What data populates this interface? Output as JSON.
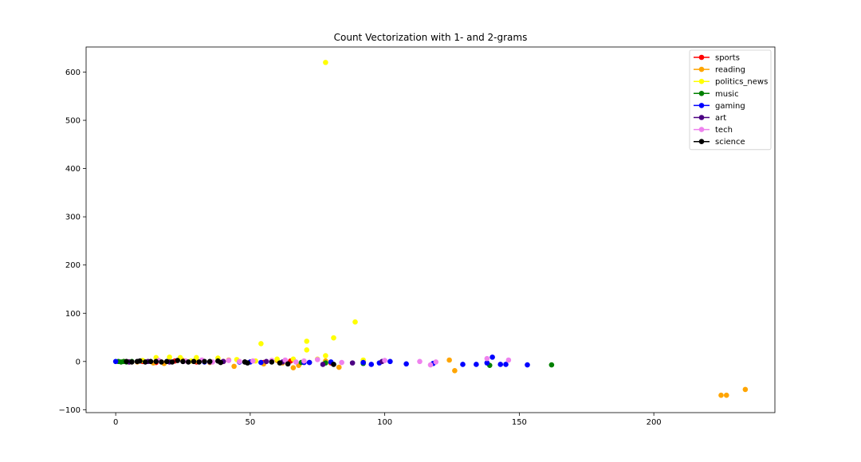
{
  "chart_data": {
    "type": "scatter",
    "title": "Count Vectorization with 1- and 2-grams",
    "xlabel": "",
    "ylabel": "",
    "xlim": [
      -11,
      245
    ],
    "ylim": [
      -106,
      652
    ],
    "xticks": [
      0,
      50,
      100,
      150,
      200
    ],
    "yticks": [
      -100,
      0,
      100,
      200,
      300,
      400,
      500,
      600
    ],
    "grid": false,
    "legend_position": "top-right",
    "series": [
      {
        "name": "sports",
        "color": "#ff0000",
        "points": [
          [
            5,
            -1
          ],
          [
            10,
            0
          ],
          [
            15,
            -2
          ],
          [
            22,
            1
          ],
          [
            30,
            -1
          ],
          [
            40,
            0
          ],
          [
            55,
            -2
          ],
          [
            65,
            1
          ],
          [
            80,
            -3
          ]
        ]
      },
      {
        "name": "reading",
        "color": "#ffa500",
        "points": [
          [
            3,
            0
          ],
          [
            8,
            -1
          ],
          [
            14,
            -3
          ],
          [
            18,
            -4
          ],
          [
            25,
            2
          ],
          [
            30,
            1
          ],
          [
            35,
            -2
          ],
          [
            42,
            3
          ],
          [
            44,
            -10
          ],
          [
            50,
            -1
          ],
          [
            55,
            -5
          ],
          [
            60,
            2
          ],
          [
            62,
            -3
          ],
          [
            66,
            -13
          ],
          [
            68,
            -8
          ],
          [
            72,
            -2
          ],
          [
            78,
            1
          ],
          [
            83,
            -12
          ],
          [
            92,
            -1
          ],
          [
            124,
            3
          ],
          [
            126,
            -19
          ],
          [
            225,
            -70
          ],
          [
            227,
            -70
          ],
          [
            234,
            -58
          ]
        ]
      },
      {
        "name": "politics_news",
        "color": "#ffff00",
        "points": [
          [
            78,
            620
          ],
          [
            89,
            82
          ],
          [
            81,
            49
          ],
          [
            71,
            42
          ],
          [
            54,
            37
          ],
          [
            71,
            24
          ],
          [
            78,
            12
          ],
          [
            92,
            3
          ],
          [
            15,
            8
          ],
          [
            20,
            9
          ],
          [
            24,
            8
          ],
          [
            30,
            8
          ],
          [
            38,
            7
          ],
          [
            45,
            4
          ],
          [
            60,
            5
          ],
          [
            66,
            5
          ],
          [
            75,
            5
          ],
          [
            10,
            2
          ],
          [
            28,
            1
          ],
          [
            52,
            1
          ]
        ]
      },
      {
        "name": "music",
        "color": "#008000",
        "points": [
          [
            1,
            0
          ],
          [
            2,
            -1
          ],
          [
            3,
            0
          ],
          [
            4,
            -1
          ],
          [
            6,
            0
          ],
          [
            69,
            -2
          ],
          [
            78,
            -3
          ],
          [
            92,
            -4
          ],
          [
            139,
            -8
          ],
          [
            162,
            -7
          ]
        ]
      },
      {
        "name": "gaming",
        "color": "#0000ff",
        "points": [
          [
            0,
            0
          ],
          [
            33,
            -1
          ],
          [
            46,
            -1
          ],
          [
            50,
            -1
          ],
          [
            54,
            -2
          ],
          [
            70,
            -2
          ],
          [
            72,
            -2
          ],
          [
            80,
            -1
          ],
          [
            92,
            -2
          ],
          [
            95,
            -6
          ],
          [
            98,
            -3
          ],
          [
            102,
            0
          ],
          [
            108,
            -5
          ],
          [
            118,
            -4
          ],
          [
            129,
            -6
          ],
          [
            134,
            -6
          ],
          [
            138,
            -3
          ],
          [
            140,
            9
          ],
          [
            143,
            -6
          ],
          [
            145,
            -6
          ],
          [
            153,
            -7
          ]
        ]
      },
      {
        "name": "art",
        "color": "#4b0082",
        "points": [
          [
            5,
            -1
          ],
          [
            12,
            0
          ],
          [
            20,
            -1
          ],
          [
            25,
            0
          ],
          [
            35,
            -1
          ],
          [
            40,
            0
          ],
          [
            48,
            -1
          ],
          [
            56,
            0
          ],
          [
            62,
            -1
          ],
          [
            77,
            -6
          ],
          [
            88,
            -3
          ],
          [
            99,
            0
          ]
        ]
      },
      {
        "name": "tech",
        "color": "#ee82ee",
        "points": [
          [
            8,
            0
          ],
          [
            16,
            2
          ],
          [
            26,
            1
          ],
          [
            32,
            3
          ],
          [
            36,
            -1
          ],
          [
            42,
            2
          ],
          [
            46,
            0
          ],
          [
            51,
            1
          ],
          [
            58,
            2
          ],
          [
            63,
            3
          ],
          [
            67,
            -1
          ],
          [
            70,
            1
          ],
          [
            75,
            4
          ],
          [
            84,
            -2
          ],
          [
            100,
            2
          ],
          [
            113,
            0
          ],
          [
            117,
            -7
          ],
          [
            119,
            -1
          ],
          [
            138,
            6
          ],
          [
            146,
            3
          ]
        ]
      },
      {
        "name": "science",
        "color": "#000000",
        "points": [
          [
            4,
            0
          ],
          [
            6,
            -1
          ],
          [
            8,
            0
          ],
          [
            9,
            1
          ],
          [
            11,
            -1
          ],
          [
            13,
            0
          ],
          [
            15,
            0
          ],
          [
            17,
            -1
          ],
          [
            19,
            0
          ],
          [
            21,
            -1
          ],
          [
            23,
            2
          ],
          [
            25,
            0
          ],
          [
            27,
            -1
          ],
          [
            29,
            0
          ],
          [
            31,
            -1
          ],
          [
            33,
            0
          ],
          [
            35,
            0
          ],
          [
            38,
            1
          ],
          [
            39,
            -2
          ],
          [
            48,
            -1
          ],
          [
            49,
            -3
          ],
          [
            58,
            -1
          ],
          [
            61,
            -3
          ],
          [
            64,
            -5
          ],
          [
            81,
            -6
          ]
        ]
      }
    ]
  }
}
